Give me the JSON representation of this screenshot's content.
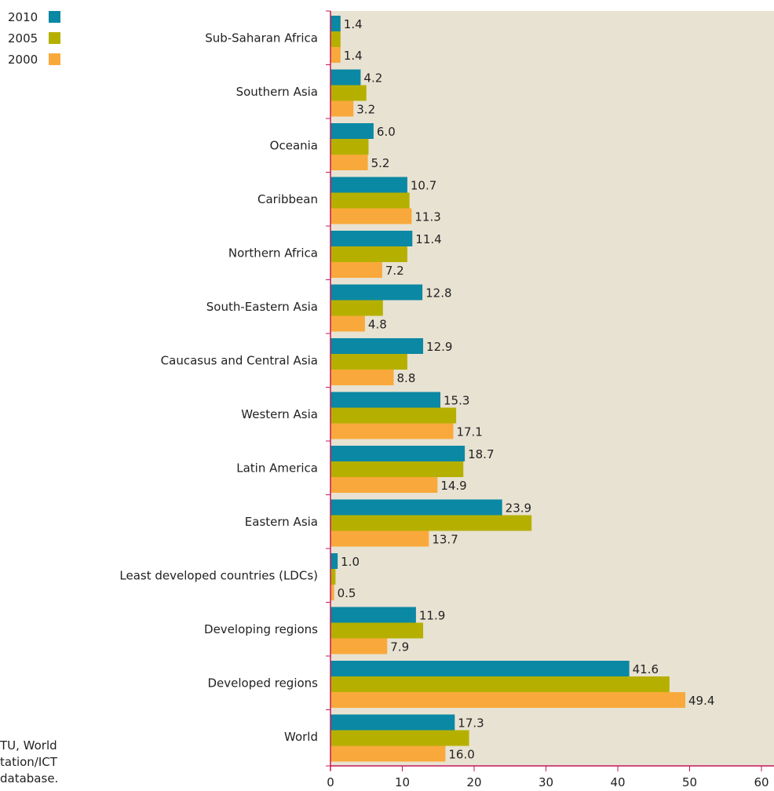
{
  "legend": {
    "items": [
      {
        "label": "2010",
        "color": "#0b88a3"
      },
      {
        "label": "2005",
        "color": "#b5b000"
      },
      {
        "label": "2000",
        "color": "#f9a93b"
      }
    ]
  },
  "source_note": "TU, World\ntation/ICT\ndatabase.",
  "chart_data": {
    "type": "bar",
    "orientation": "horizontal",
    "categories": [
      "Sub-Saharan Africa",
      "Southern Asia",
      "Oceania",
      "Caribbean",
      "Northern Africa",
      "South-Eastern Asia",
      "Caucasus and Central Asia",
      "Western Asia",
      "Latin America",
      "Eastern Asia",
      "Least developed countries (LDCs)",
      "Developing regions",
      "Developed regions",
      "World"
    ],
    "series": [
      {
        "name": "2010",
        "color": "#0b88a3",
        "values": [
          1.4,
          4.2,
          6.0,
          10.7,
          11.4,
          12.8,
          12.9,
          15.3,
          18.7,
          23.9,
          1.0,
          11.9,
          41.6,
          17.3
        ]
      },
      {
        "name": "2005",
        "color": "#b5b000",
        "values": [
          1.4,
          5.0,
          5.3,
          11.0,
          10.7,
          7.3,
          10.7,
          17.5,
          18.5,
          28.0,
          0.7,
          12.9,
          47.2,
          19.3
        ]
      },
      {
        "name": "2000",
        "color": "#f9a93b",
        "values": [
          1.4,
          3.2,
          5.2,
          11.3,
          7.2,
          4.8,
          8.8,
          17.1,
          14.9,
          13.7,
          0.5,
          7.9,
          49.4,
          16.0
        ]
      }
    ],
    "labeled_series": [
      "2010",
      "2000"
    ],
    "xlim": [
      0,
      60
    ],
    "xticks": [
      0,
      10,
      20,
      30,
      40,
      50,
      60
    ],
    "plot_background": "#e8e2d2",
    "axis_color": "#c2185b",
    "grid": false,
    "legend_position": "top-left"
  }
}
